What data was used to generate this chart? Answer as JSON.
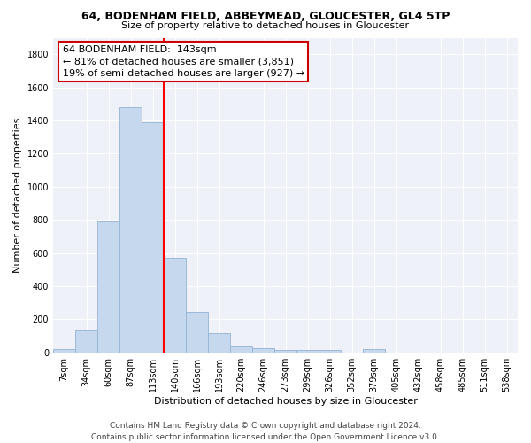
{
  "title1": "64, BODENHAM FIELD, ABBEYMEAD, GLOUCESTER, GL4 5TP",
  "title2": "Size of property relative to detached houses in Gloucester",
  "xlabel": "Distribution of detached houses by size in Gloucester",
  "ylabel": "Number of detached properties",
  "categories": [
    "7sqm",
    "34sqm",
    "60sqm",
    "87sqm",
    "113sqm",
    "140sqm",
    "166sqm",
    "193sqm",
    "220sqm",
    "246sqm",
    "273sqm",
    "299sqm",
    "326sqm",
    "352sqm",
    "379sqm",
    "405sqm",
    "432sqm",
    "458sqm",
    "485sqm",
    "511sqm",
    "538sqm"
  ],
  "values": [
    20,
    130,
    790,
    1480,
    1390,
    570,
    245,
    115,
    35,
    25,
    15,
    15,
    15,
    0,
    20,
    0,
    0,
    0,
    0,
    0,
    0
  ],
  "bar_color": "#c5d8ed",
  "bar_edge_color": "#92b4d4",
  "bg_color": "#eef2f8",
  "red_line_x": 4.5,
  "annotation_text": "64 BODENHAM FIELD:  143sqm\n← 81% of detached houses are smaller (3,851)\n19% of semi-detached houses are larger (927) →",
  "annotation_box_color": "#ffffff",
  "annotation_box_edge": "#cc0000",
  "footer": "Contains HM Land Registry data © Crown copyright and database right 2024.\nContains public sector information licensed under the Open Government Licence v3.0.",
  "ylim": [
    0,
    1900
  ],
  "title1_fontsize": 9,
  "title2_fontsize": 8,
  "ylabel_fontsize": 8,
  "xlabel_fontsize": 8,
  "tick_fontsize": 7,
  "ann_fontsize": 8,
  "footer_fontsize": 6.5
}
